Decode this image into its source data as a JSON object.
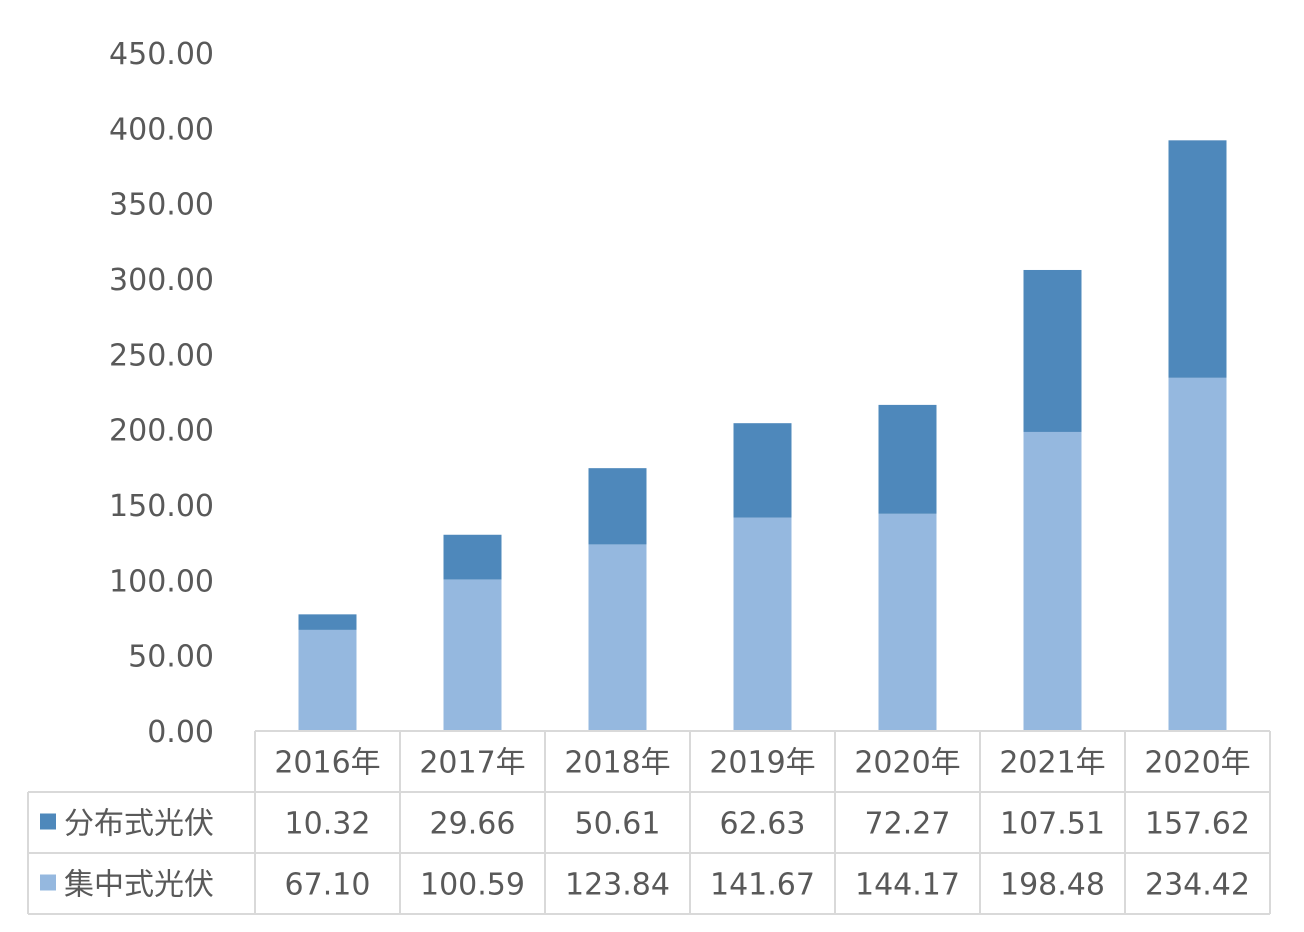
{
  "chart_data": {
    "type": "bar",
    "stacked": true,
    "categories": [
      "2016年",
      "2017年",
      "2018年",
      "2019年",
      "2020年",
      "2021年",
      "2020年"
    ],
    "series": [
      {
        "name": "集中式光伏",
        "color": "#95b8df",
        "values": [
          67.1,
          100.59,
          123.84,
          141.67,
          144.17,
          198.48,
          234.42
        ],
        "labels": [
          "67.10",
          "100.59",
          "123.84",
          "141.67",
          "144.17",
          "198.48",
          "234.42"
        ]
      },
      {
        "name": "分布式光伏",
        "color": "#4e88bb",
        "values": [
          10.32,
          29.66,
          50.61,
          62.63,
          72.27,
          107.51,
          157.62
        ],
        "labels": [
          "10.32",
          "29.66",
          "50.61",
          "62.63",
          "72.27",
          "107.51",
          "157.62"
        ]
      }
    ],
    "table_series_order": [
      "分布式光伏",
      "集中式光伏"
    ],
    "yticks": [
      "0.00",
      "50.00",
      "100.00",
      "150.00",
      "200.00",
      "250.00",
      "300.00",
      "350.00",
      "400.00",
      "450.00"
    ],
    "ylim": [
      0,
      450
    ],
    "grid": false,
    "legend": "data-table"
  }
}
